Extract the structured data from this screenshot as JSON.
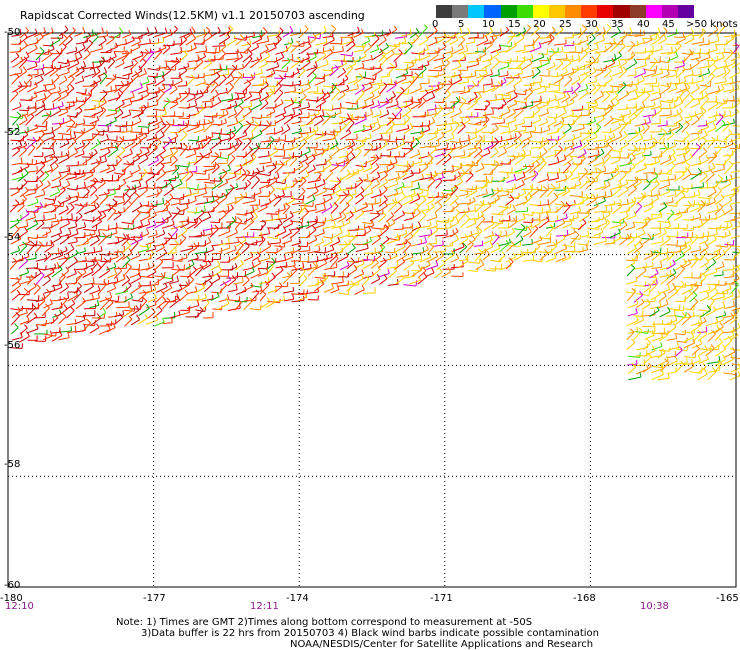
{
  "title": "Rapidscat Corrected Winds(12.5KM) v1.1 20150703 ascending",
  "colorbar": {
    "colors": [
      "#3c3c3c",
      "#7a7a7a",
      "#00c8ff",
      "#0064ff",
      "#00a000",
      "#3cdc00",
      "#ffff00",
      "#ffc800",
      "#ff8c00",
      "#ff3c00",
      "#e60000",
      "#a00000",
      "#8c3c28",
      "#ff00ff",
      "#b400b4",
      "#6400a0"
    ],
    "labels": [
      "0",
      "5",
      "10",
      "15",
      "20",
      "25",
      "30",
      "35",
      "40",
      "45",
      ">50 knots"
    ]
  },
  "axes": {
    "y_labels": [
      "-50",
      "-52",
      "-54",
      "-56",
      "-58",
      "-60"
    ],
    "x_labels": [
      "-180",
      "-177",
      "-174",
      "-171",
      "-168",
      "-165"
    ]
  },
  "times": [
    "12:10",
    "12:11",
    "10:38"
  ],
  "notes": {
    "line1": "Note: 1) Times are GMT 2)Times along bottom correspond to measurement at -50S",
    "line2": "3)Data buffer is 22 hrs from 20150703 4) Black wind barbs indicate possible contamination",
    "line3": "NOAA/NESDIS/Center for Satellite Applications and Research"
  },
  "map_data": {
    "lon_range": [
      -180,
      -165
    ],
    "lat_range": [
      -60,
      -50
    ],
    "grid": "dotted"
  }
}
